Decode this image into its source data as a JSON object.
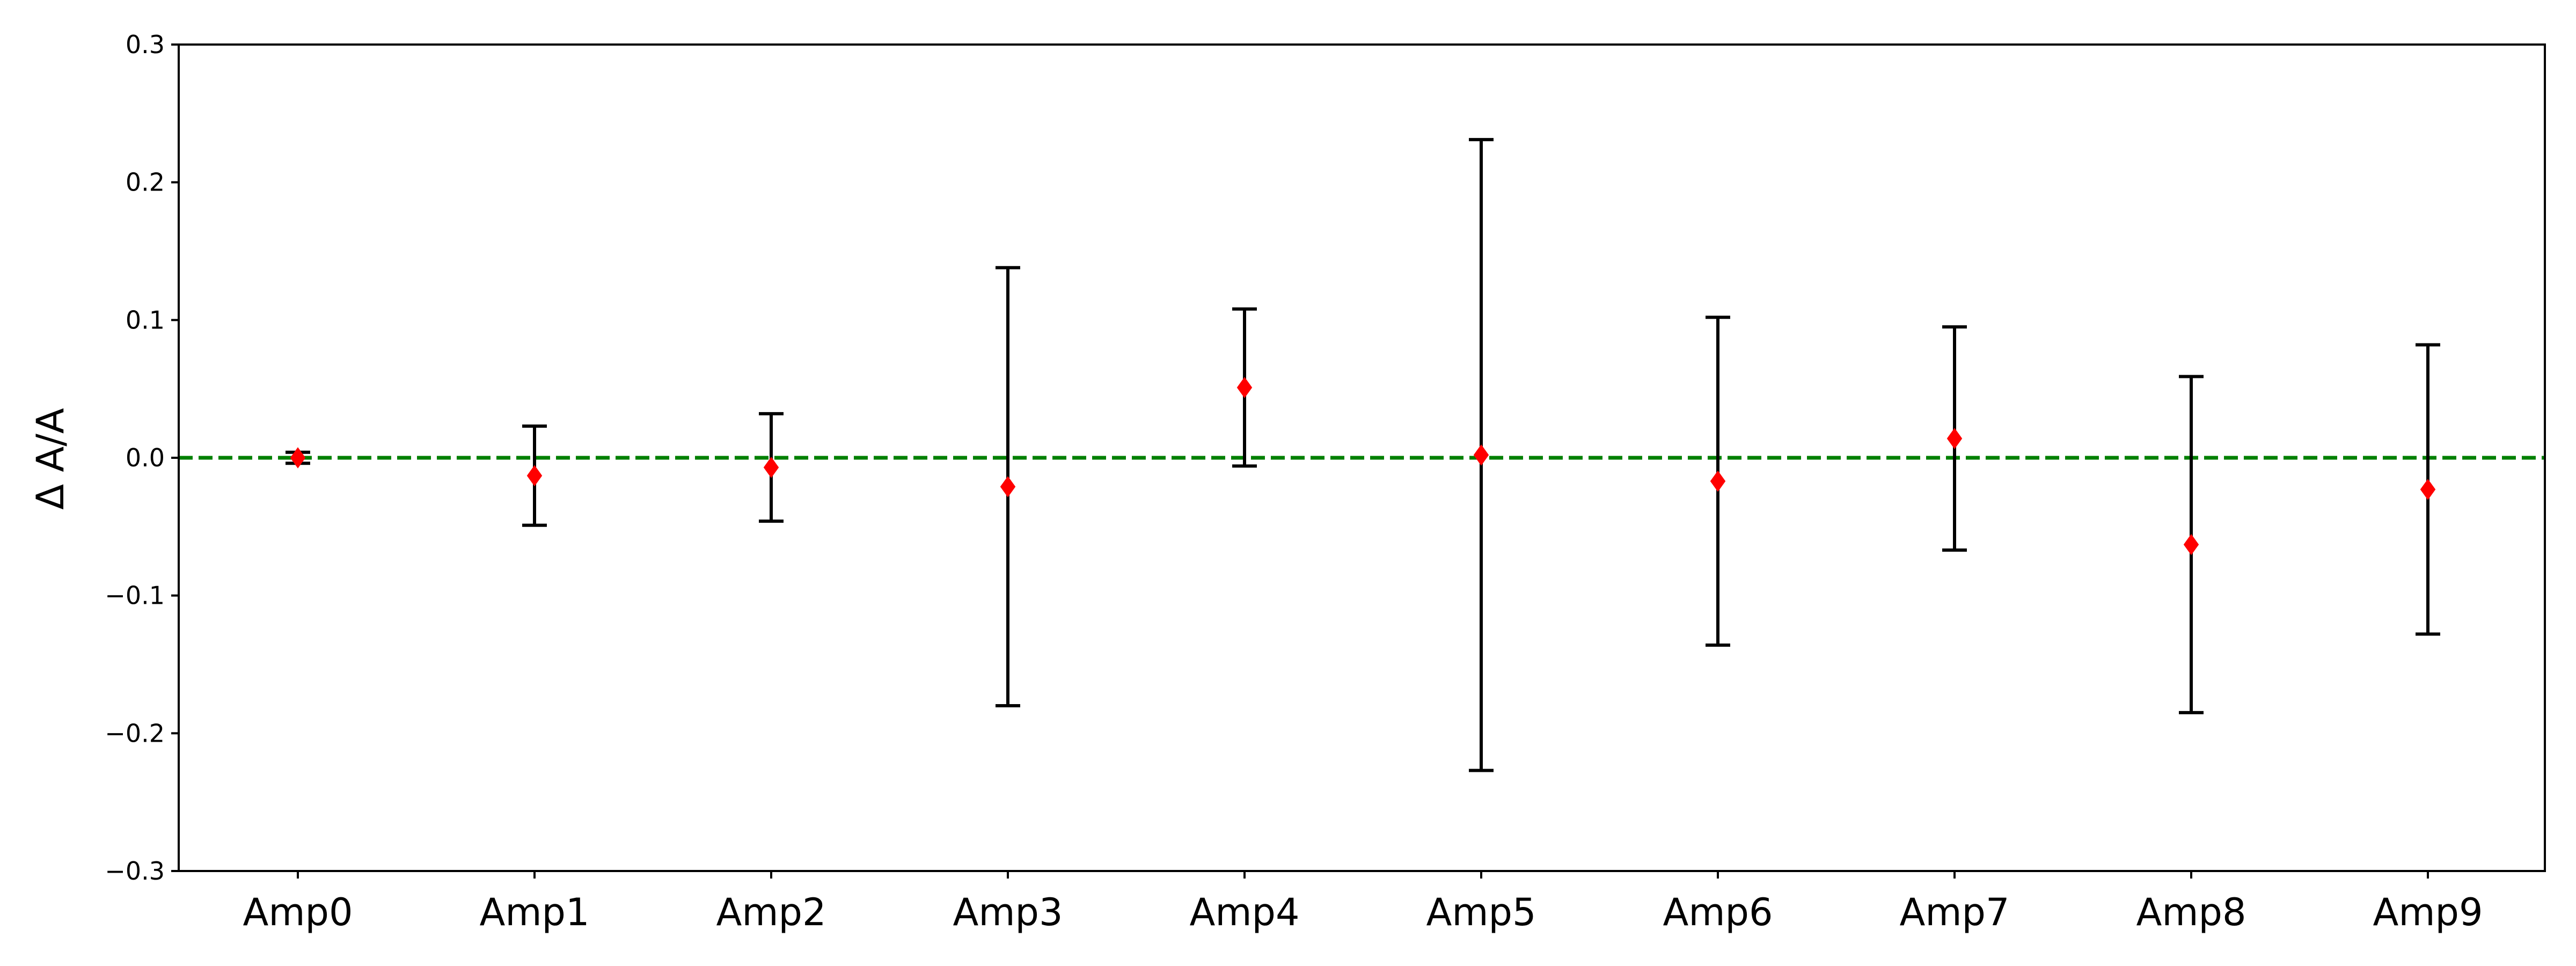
{
  "chart_data": {
    "type": "scatter",
    "title": "",
    "xlabel": "",
    "ylabel": "Δ A/A",
    "categories": [
      "Amp0",
      "Amp1",
      "Amp2",
      "Amp3",
      "Amp4",
      "Amp5",
      "Amp6",
      "Amp7",
      "Amp8",
      "Amp9"
    ],
    "values": [
      0.0,
      -0.013,
      -0.007,
      -0.021,
      0.051,
      0.002,
      -0.017,
      0.014,
      -0.063,
      -0.023
    ],
    "errors": [
      0.004,
      0.036,
      0.039,
      0.159,
      0.057,
      0.229,
      0.119,
      0.081,
      0.122,
      0.105
    ],
    "ylim": [
      -0.3,
      0.3
    ],
    "yticks": [
      "0.3",
      "0.2",
      "0.1",
      "0.0",
      "−0.1",
      "−0.2",
      "−0.3"
    ],
    "ytick_values": [
      0.3,
      0.2,
      0.1,
      0.0,
      -0.1,
      -0.2,
      -0.3
    ],
    "reference_line": {
      "y": 0.0,
      "style": "dashed",
      "color": "#008000"
    },
    "marker": {
      "shape": "diamond",
      "color": "#ff0000"
    },
    "errorbar_color": "#000000",
    "grid": false,
    "legend": "none"
  }
}
